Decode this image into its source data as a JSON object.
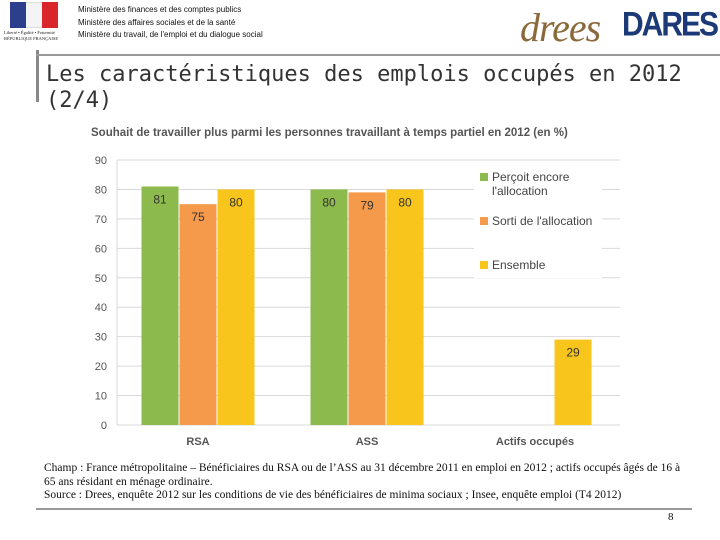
{
  "header": {
    "logo_text": "Liberté • Égalité • Fraternité RÉPUBLIQUE FRANÇAISE",
    "ministries": [
      "Ministère des finances et des comptes publics",
      "Ministère des affaires sociales et de la santé",
      "Ministère du travail, de l'emploi et du dialogue social"
    ],
    "drees_logo": "drees",
    "dares_logo": "DARES"
  },
  "slide": {
    "title": "Les caractéristiques des emplois occupés en 2012 (2/4)",
    "notes": [
      "Champ : France métropolitaine – Bénéficiaires du RSA ou de l’ASS au 31 décembre 2011 en emploi en 2012 ; actifs occupés âgés de 16 à 65 ans résidant en ménage ordinaire.",
      "Source : Drees, enquête 2012 sur les conditions de vie des bénéficiaires de minima sociaux ; Insee, enquête emploi (T4 2012)"
    ],
    "page_number": "8"
  },
  "colors": {
    "green": "#8cba4c",
    "orange": "#f59a4a",
    "yellow": "#f7c51b",
    "grid": "#d9d9d9"
  },
  "chart_data": {
    "type": "bar",
    "title": "Souhait de travailler plus parmi les personnes travaillant à temps partiel en 2012 (en %)",
    "categories": [
      "RSA",
      "ASS",
      "Actifs occupés"
    ],
    "series": [
      {
        "name": "Perçoit encore l'allocation",
        "color": "#8cba4c",
        "values": [
          81,
          80,
          null
        ]
      },
      {
        "name": "Sorti de l'allocation",
        "color": "#f59a4a",
        "values": [
          75,
          79,
          null
        ]
      },
      {
        "name": "Ensemble",
        "color": "#f7c51b",
        "values": [
          80,
          80,
          29
        ]
      }
    ],
    "ylim": [
      0,
      90
    ],
    "yticks": [
      0,
      10,
      20,
      30,
      40,
      50,
      60,
      70,
      80,
      90
    ],
    "grid": true,
    "legend_position": "right"
  }
}
